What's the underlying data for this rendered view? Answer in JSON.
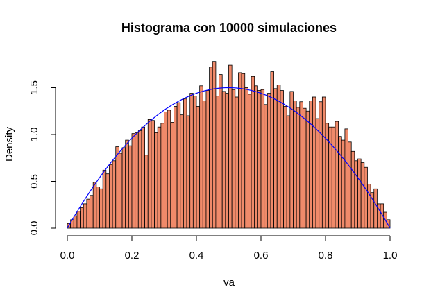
{
  "chart_data": {
    "type": "bar",
    "title": "Histograma con 10000 simulaciones",
    "xlabel": "va",
    "ylabel": "Density",
    "xlim": [
      0,
      1
    ],
    "ylim": [
      0,
      1.6
    ],
    "xticks": [
      "0.0",
      "0.2",
      "0.4",
      "0.6",
      "0.8",
      "1.0"
    ],
    "yticks": [
      "0.0",
      "0.5",
      "1.0",
      "1.5"
    ],
    "bin_width": 0.01,
    "bar_color": "#F08A6A",
    "bar_edge_color": "#000000",
    "curve_color": "#0000FF",
    "values": [
      0.05,
      0.09,
      0.13,
      0.18,
      0.22,
      0.26,
      0.31,
      0.35,
      0.49,
      0.44,
      0.42,
      0.62,
      0.58,
      0.68,
      0.72,
      0.87,
      0.8,
      0.86,
      0.94,
      0.88,
      1.01,
      1.02,
      1.04,
      1.08,
      0.78,
      1.16,
      1.15,
      1.02,
      1.08,
      1.12,
      1.24,
      1.26,
      1.13,
      1.3,
      1.34,
      1.21,
      1.38,
      1.2,
      1.44,
      1.41,
      1.3,
      1.52,
      1.36,
      1.47,
      1.72,
      1.78,
      1.41,
      1.64,
      1.46,
      1.44,
      1.74,
      1.48,
      1.4,
      1.66,
      1.65,
      1.5,
      1.43,
      1.62,
      1.52,
      1.47,
      1.48,
      1.32,
      1.44,
      1.67,
      1.49,
      1.53,
      1.47,
      1.3,
      1.2,
      1.46,
      1.36,
      1.29,
      1.35,
      1.28,
      1.25,
      1.36,
      1.4,
      1.17,
      1.35,
      1.4,
      1.12,
      1.08,
      1.08,
      1.14,
      0.98,
      0.94,
      1.06,
      0.92,
      0.82,
      0.72,
      0.74,
      0.7,
      0.65,
      0.47,
      0.38,
      0.42,
      0.26,
      0.26,
      0.17,
      0.09
    ],
    "curve": "density: 6x(1-x)"
  }
}
